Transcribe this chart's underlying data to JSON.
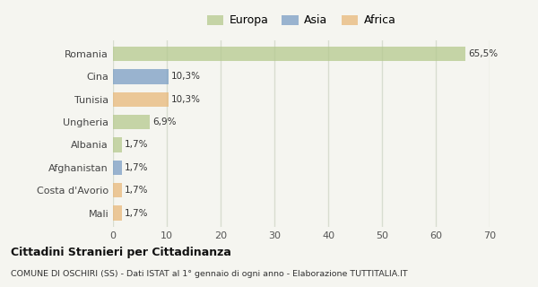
{
  "categories": [
    "Romania",
    "Cina",
    "Tunisia",
    "Ungheria",
    "Albania",
    "Afghanistan",
    "Costa d'Avorio",
    "Mali"
  ],
  "values": [
    65.5,
    10.3,
    10.3,
    6.9,
    1.7,
    1.7,
    1.7,
    1.7
  ],
  "labels": [
    "65,5%",
    "10,3%",
    "10,3%",
    "6,9%",
    "1,7%",
    "1,7%",
    "1,7%",
    "1,7%"
  ],
  "colors": [
    "#b5c98e",
    "#7a9dc5",
    "#e8b87a",
    "#b5c98e",
    "#b5c98e",
    "#7a9dc5",
    "#e8b87a",
    "#e8b87a"
  ],
  "legend_items": [
    {
      "label": "Europa",
      "color": "#b5c98e"
    },
    {
      "label": "Asia",
      "color": "#7a9dc5"
    },
    {
      "label": "Africa",
      "color": "#e8b87a"
    }
  ],
  "xlim": [
    0,
    70
  ],
  "xticks": [
    0,
    10,
    20,
    30,
    40,
    50,
    60,
    70
  ],
  "background_color": "#f5f5f0",
  "grid_color": "#d8ddd0",
  "title_line1": "Cittadini Stranieri per Cittadinanza",
  "title_line2": "COMUNE DI OSCHIRI (SS) - Dati ISTAT al 1° gennaio di ogni anno - Elaborazione TUTTITALIA.IT",
  "bar_height": 0.65,
  "bar_alpha": 0.75
}
